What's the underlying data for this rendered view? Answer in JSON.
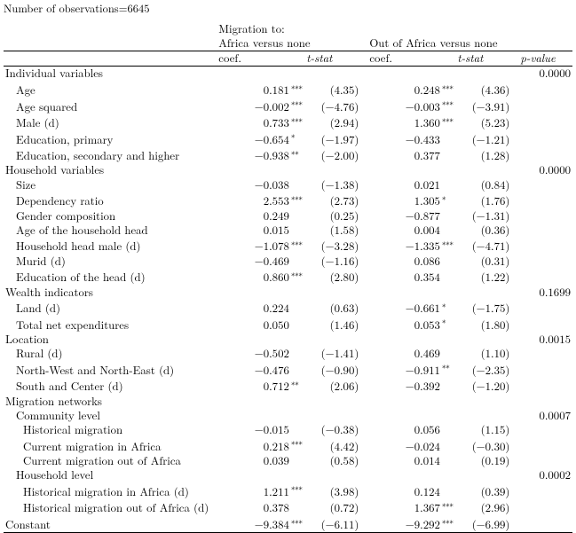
{
  "nobs_text": "Number of observations=6645",
  "headers": {
    "migration_to": "Migration to:",
    "col1_title": "Africa versus none",
    "col2_title": "Out of Africa versus none",
    "coef": "coef.",
    "tstat": "t-stat",
    "pvalue": "p-value"
  },
  "sections": [
    {
      "label": "Individual variables",
      "pvalue": "0.0000",
      "rows": [
        {
          "label": "Age",
          "c1": "0.181",
          "s1": "∗∗∗",
          "t1": "(4.35)",
          "c2": "0.248",
          "s2": "∗∗∗",
          "t2": "(4.36)"
        },
        {
          "label": "Age squared",
          "c1": "−0.002",
          "s1": "∗∗∗",
          "t1": "(−4.76)",
          "c2": "−0.003",
          "s2": "∗∗∗",
          "t2": "(−3.91)"
        },
        {
          "label": "Male (d)",
          "c1": "0.733",
          "s1": "∗∗∗",
          "t1": "(2.94)",
          "c2": "1.360",
          "s2": "∗∗∗",
          "t2": "(5.23)"
        },
        {
          "label": "Education, primary",
          "c1": "−0.654",
          "s1": "∗",
          "t1": "(−1.97)",
          "c2": "−0.433",
          "s2": "",
          "t2": "(−1.21)"
        },
        {
          "label": "Education, secondary and higher",
          "c1": "−0.938",
          "s1": "∗∗",
          "t1": "(−2.00)",
          "c2": "0.377",
          "s2": "",
          "t2": "(1.28)"
        }
      ]
    },
    {
      "label": "Household variables",
      "pvalue": "0.0000",
      "rows": [
        {
          "label": "Size",
          "c1": "−0.038",
          "s1": "",
          "t1": "(−1.38)",
          "c2": "0.021",
          "s2": "",
          "t2": "(0.84)"
        },
        {
          "label": "Dependency ratio",
          "c1": "2.553",
          "s1": "∗∗∗",
          "t1": "(2.73)",
          "c2": "1.305",
          "s2": "∗",
          "t2": "(1.76)"
        },
        {
          "label": "Gender composition",
          "c1": "0.249",
          "s1": "",
          "t1": "(0.25)",
          "c2": "−0.877",
          "s2": "",
          "t2": "(−1.31)"
        },
        {
          "label": "Age of the household head",
          "c1": "0.015",
          "s1": "",
          "t1": "(1.58)",
          "c2": "0.004",
          "s2": "",
          "t2": "(0.36)"
        },
        {
          "label": "Household head male (d)",
          "c1": "−1.078",
          "s1": "∗∗∗",
          "t1": "(−3.28)",
          "c2": "−1.335",
          "s2": "∗∗∗",
          "t2": "(−4.71)"
        },
        {
          "label": "Murid (d)",
          "c1": "−0.469",
          "s1": "",
          "t1": "(−1.16)",
          "c2": "0.086",
          "s2": "",
          "t2": "(0.31)"
        },
        {
          "label": "Education of the head (d)",
          "c1": "0.860",
          "s1": "∗∗∗",
          "t1": "(2.80)",
          "c2": "0.354",
          "s2": "",
          "t2": "(1.22)"
        }
      ]
    },
    {
      "label": "Wealth indicators",
      "pvalue": "0.1699",
      "rows": [
        {
          "label": "Land (d)",
          "c1": "0.224",
          "s1": "",
          "t1": "(0.63)",
          "c2": "−0.661",
          "s2": "∗",
          "t2": "(−1.75)"
        },
        {
          "label": "Total net expenditures",
          "c1": "0.050",
          "s1": "",
          "t1": "(1.46)",
          "c2": "0.053",
          "s2": "∗",
          "t2": "(1.80)"
        }
      ]
    },
    {
      "label": "Location",
      "pvalue": "0.0015",
      "rows": [
        {
          "label": "Rural (d)",
          "c1": "−0.502",
          "s1": "",
          "t1": "(−1.41)",
          "c2": "0.469",
          "s2": "",
          "t2": "(1.10)"
        },
        {
          "label": "North-West and North-East (d)",
          "c1": "−0.476",
          "s1": "",
          "t1": "(−0.90)",
          "c2": "−0.911",
          "s2": "∗∗",
          "t2": "(−2.35)"
        },
        {
          "label": "South and Center (d)",
          "c1": "0.712",
          "s1": "∗∗",
          "t1": "(2.06)",
          "c2": "−0.392",
          "s2": "",
          "t2": "(−1.20)"
        }
      ]
    },
    {
      "label": "Migration networks",
      "pvalue": "",
      "rows": []
    },
    {
      "label": "Community level",
      "pvalue": "0.0007",
      "sublevel": true,
      "rows": [
        {
          "label": "Historical migration",
          "c1": "−0.015",
          "s1": "",
          "t1": "(−0.38)",
          "c2": "0.056",
          "s2": "",
          "t2": "(1.15)",
          "indent": 2
        },
        {
          "label": "Current migration in Africa",
          "c1": "0.218",
          "s1": "∗∗∗",
          "t1": "(4.42)",
          "c2": "−0.024",
          "s2": "",
          "t2": "(−0.30)",
          "indent": 2
        },
        {
          "label": "Current migration out of Africa",
          "c1": "0.039",
          "s1": "",
          "t1": "(0.58)",
          "c2": "0.014",
          "s2": "",
          "t2": "(0.19)",
          "indent": 2
        }
      ]
    },
    {
      "label": "Household level",
      "pvalue": "0.0002",
      "sublevel": true,
      "rows": [
        {
          "label": "Historical migration in Africa (d)",
          "c1": "1.211",
          "s1": "∗∗∗",
          "t1": "(3.98)",
          "c2": "0.124",
          "s2": "",
          "t2": "(0.39)",
          "indent": 2
        },
        {
          "label": "Historical migration out of Africa (d)",
          "c1": "0.378",
          "s1": "",
          "t1": "(0.72)",
          "c2": "1.367",
          "s2": "∗∗∗",
          "t2": "(2.96)",
          "indent": 2
        }
      ]
    }
  ],
  "constant": {
    "label": "Constant",
    "c1": "−9.384",
    "s1": "∗∗∗",
    "t1": "(−6.11)",
    "c2": "−9.292",
    "s2": "∗∗∗",
    "t2": "(−6.99)"
  }
}
